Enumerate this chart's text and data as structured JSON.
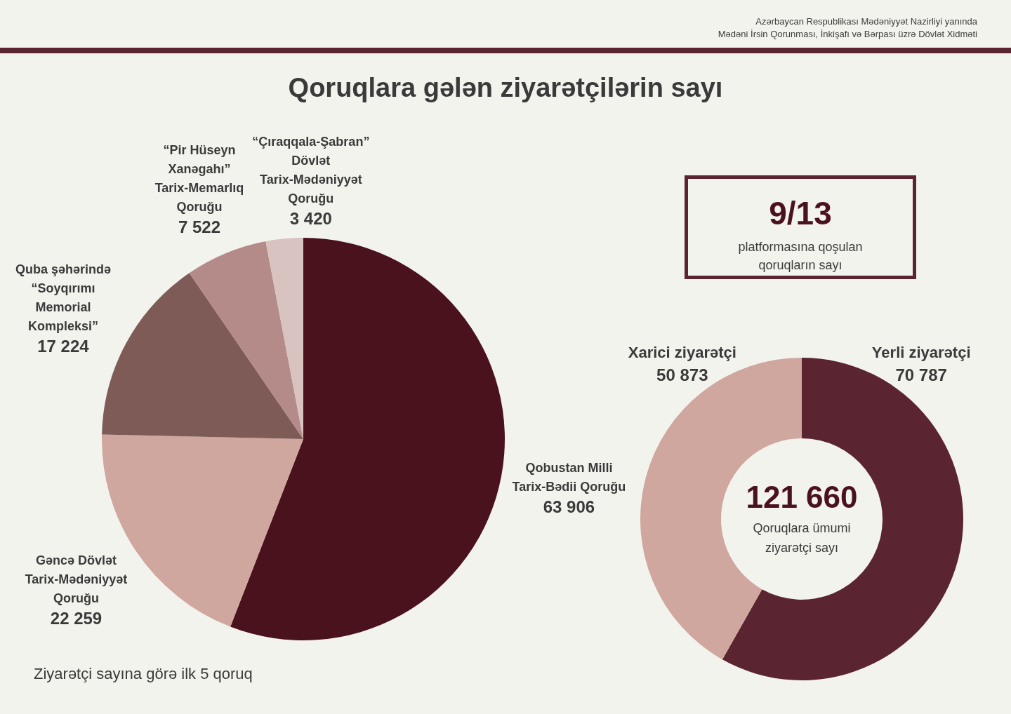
{
  "chart_data": [
    {
      "type": "pie",
      "title": "Qoruqlara gələn ziyarətçilərin sayı",
      "categories": [
        "Qobustan Milli Tarix-Bədii Qoruğu",
        "Gəncə Dövlət Tarix-Mədəniyyət Qoruğu",
        "Quba şəhərində “Soyqırımı Memorial Kompleksi”",
        "“Pir Hüseyn Xanəgahı” Tarix-Memarlıq Qoruğu",
        "“Çıraqqala-Şabran” Dövlət Tarix-Mədəniyyət Qoruğu"
      ],
      "values": [
        63906,
        22259,
        17224,
        7522,
        3420
      ],
      "value_labels": [
        "63 906",
        "22 259",
        "17 224",
        "7 522",
        "3 420"
      ],
      "colors": [
        "#4a121d",
        "#d0a79e",
        "#7f5b57",
        "#b48b88",
        "#d9c3c0"
      ],
      "annotations": [
        "Azərbaycan Respublikası Mədəniyyət Nazirliyi yanında",
        "Mədəni İrsin Qorunması, İnkişafı və Bərpası üzrə Dövlət Xidməti",
        "Ziyarətçi sayına görə ilk 5 qoruq"
      ]
    },
    {
      "type": "other",
      "annotations": [
        "9/13",
        "platformasına qoşulan qoruqların sayı"
      ]
    },
    {
      "type": "donut",
      "categories": [
        "Yerli ziyarətçi",
        "Xarici ziyarətçi"
      ],
      "values": [
        70787,
        50873
      ],
      "value_labels": [
        "70 787",
        "50 873"
      ],
      "colors": [
        "#5a2430",
        "#d0a79e"
      ],
      "annotations": [
        "121 660",
        "Qoruqlara ümumi ziyarətçi sayı"
      ]
    }
  ]
}
